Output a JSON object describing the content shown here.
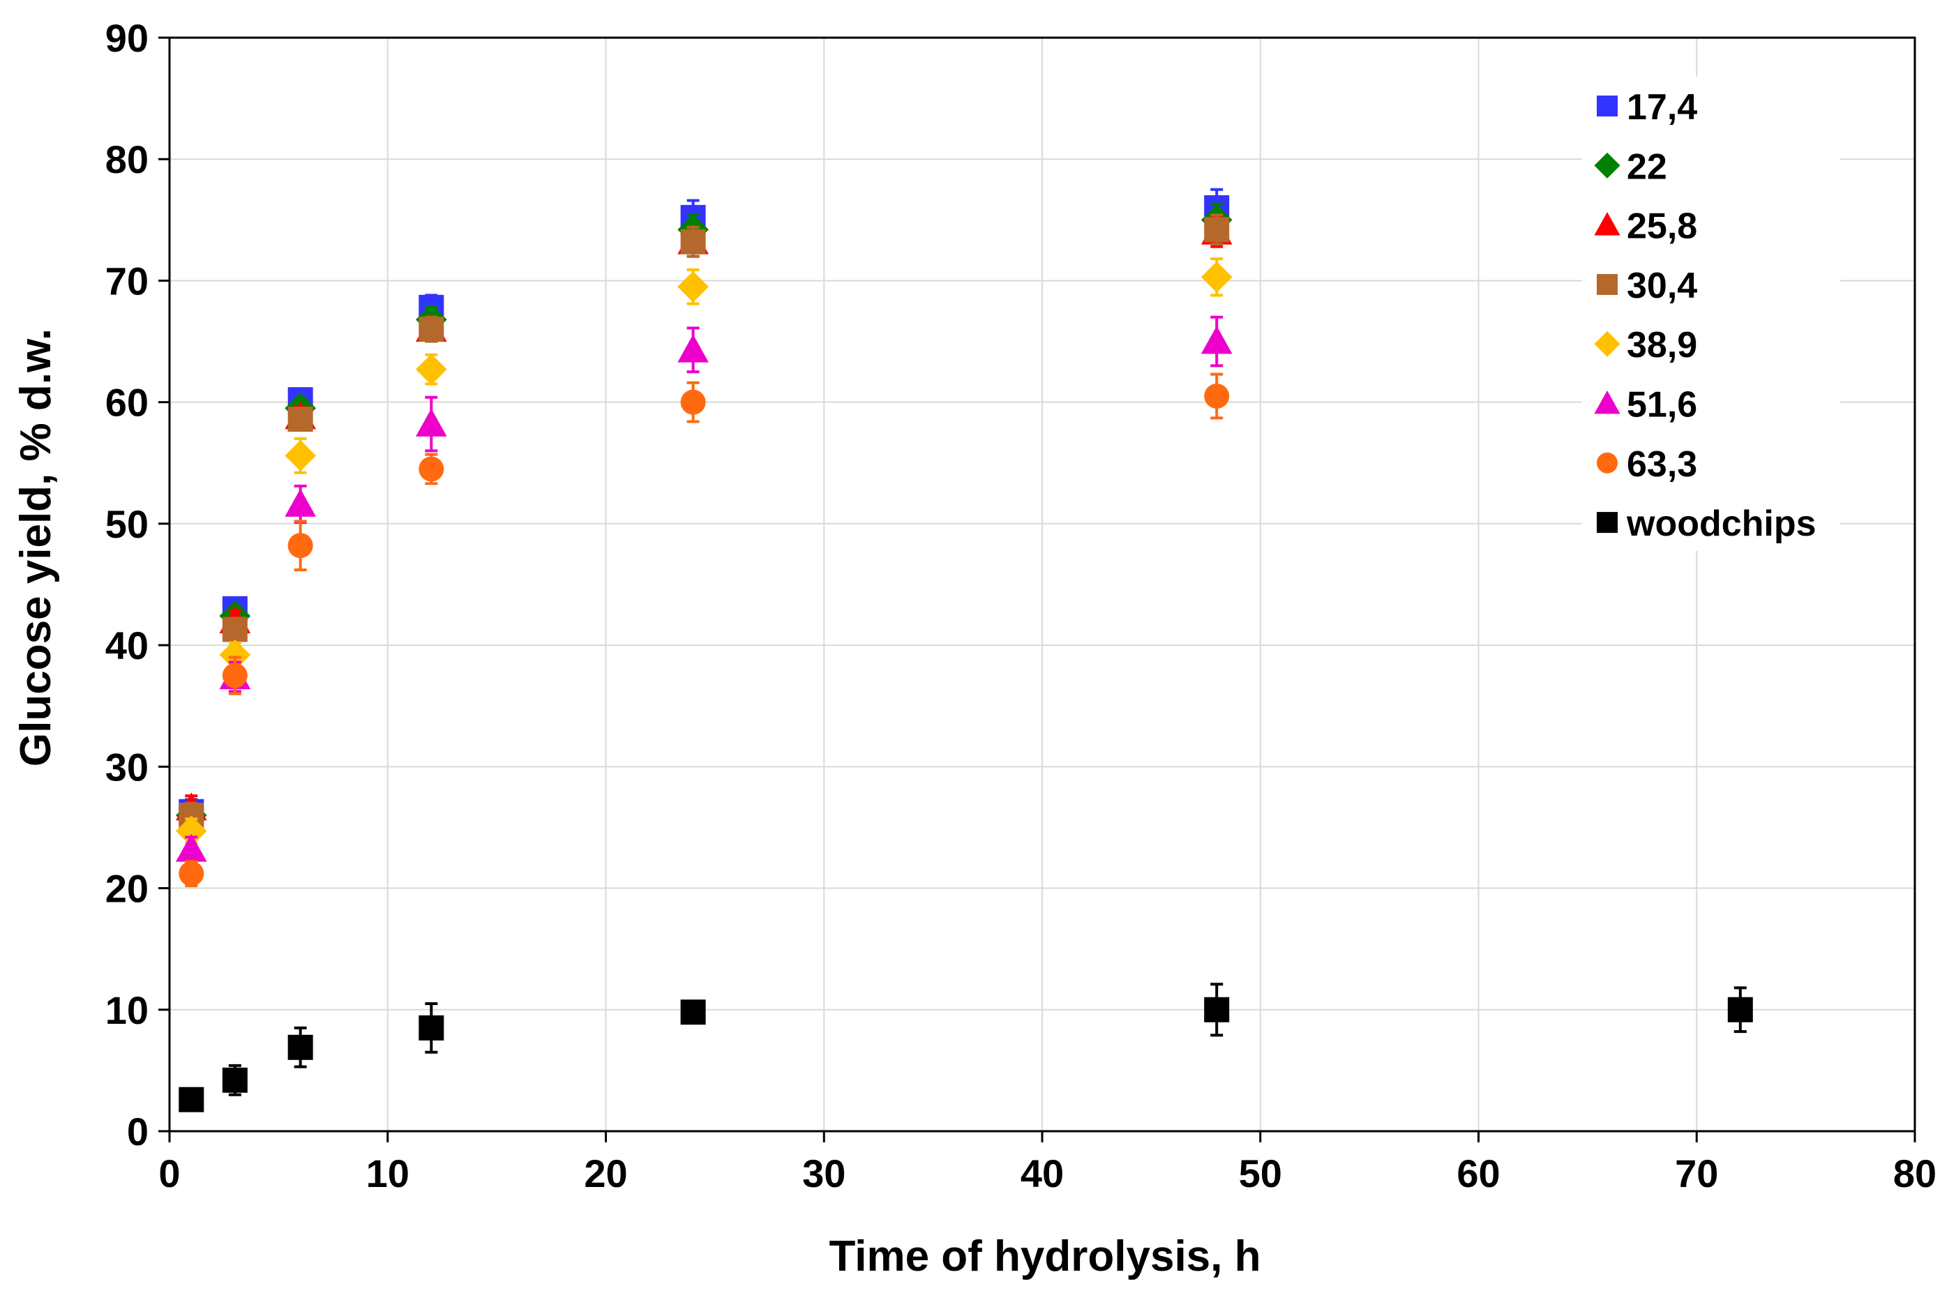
{
  "chart_data": {
    "type": "scatter",
    "title": "",
    "xlabel": "Time of hydrolysis, h",
    "ylabel": "Glucose yield, % d.w.",
    "xlim": [
      0,
      80
    ],
    "ylim": [
      0,
      90
    ],
    "xticks": [
      0,
      10,
      20,
      30,
      40,
      50,
      60,
      70,
      80
    ],
    "yticks": [
      0,
      10,
      20,
      30,
      40,
      50,
      60,
      70,
      80,
      90
    ],
    "grid": true,
    "legend_position": "top-right",
    "series": [
      {
        "name": "17,4",
        "marker": "square",
        "color": "#3333ff",
        "x": [
          1,
          3,
          6,
          12,
          24,
          48
        ],
        "y": [
          26.3,
          43.0,
          60.2,
          67.8,
          75.2,
          76.0
        ],
        "err": [
          1.0,
          0.8,
          0.8,
          1.0,
          1.4,
          1.5
        ]
      },
      {
        "name": "22",
        "marker": "diamond",
        "color": "#008000",
        "x": [
          1,
          3,
          6,
          12,
          24,
          48
        ],
        "y": [
          26.0,
          42.4,
          59.5,
          66.8,
          74.2,
          75.0
        ],
        "err": [
          1.0,
          0.8,
          0.8,
          1.0,
          1.2,
          1.3
        ]
      },
      {
        "name": "25,8",
        "marker": "triangle",
        "color": "#ff0000",
        "x": [
          1,
          3,
          6,
          12,
          24,
          48
        ],
        "y": [
          26.6,
          42.0,
          58.8,
          66.0,
          73.2,
          74.0
        ],
        "err": [
          1.0,
          0.8,
          0.8,
          1.0,
          1.2,
          1.2
        ]
      },
      {
        "name": "30,4",
        "marker": "square",
        "color": "#b5682b",
        "x": [
          1,
          3,
          6,
          12,
          24,
          48
        ],
        "y": [
          26.0,
          41.3,
          58.6,
          66.0,
          73.2,
          74.2
        ],
        "err": [
          1.0,
          0.8,
          0.8,
          1.0,
          1.2,
          1.2
        ]
      },
      {
        "name": "38,9",
        "marker": "diamond",
        "color": "#ffc000",
        "x": [
          1,
          3,
          6,
          12,
          24,
          48
        ],
        "y": [
          24.7,
          39.2,
          55.6,
          62.7,
          69.5,
          70.3
        ],
        "err": [
          1.0,
          1.0,
          1.4,
          1.2,
          1.4,
          1.5
        ]
      },
      {
        "name": "51,6",
        "marker": "triangle",
        "color": "#ee00cc",
        "x": [
          1,
          3,
          6,
          12,
          24,
          48
        ],
        "y": [
          23.2,
          37.4,
          51.6,
          58.2,
          64.3,
          65.0
        ],
        "err": [
          1.0,
          1.2,
          1.5,
          2.2,
          1.8,
          2.0
        ]
      },
      {
        "name": "63,3",
        "marker": "circle",
        "color": "#ff6a10",
        "x": [
          1,
          3,
          6,
          12,
          24,
          48
        ],
        "y": [
          21.2,
          37.5,
          48.2,
          54.5,
          60.0,
          60.5
        ],
        "err": [
          1.0,
          1.5,
          2.0,
          1.2,
          1.6,
          1.8
        ]
      },
      {
        "name": "woodchips",
        "marker": "square",
        "color": "#000000",
        "x": [
          1,
          3,
          6,
          12,
          24,
          48,
          72
        ],
        "y": [
          2.6,
          4.2,
          6.9,
          8.5,
          9.8,
          10.0,
          10.0
        ],
        "err": [
          0.4,
          1.2,
          1.6,
          2.0,
          0.3,
          2.1,
          1.8
        ]
      }
    ]
  }
}
